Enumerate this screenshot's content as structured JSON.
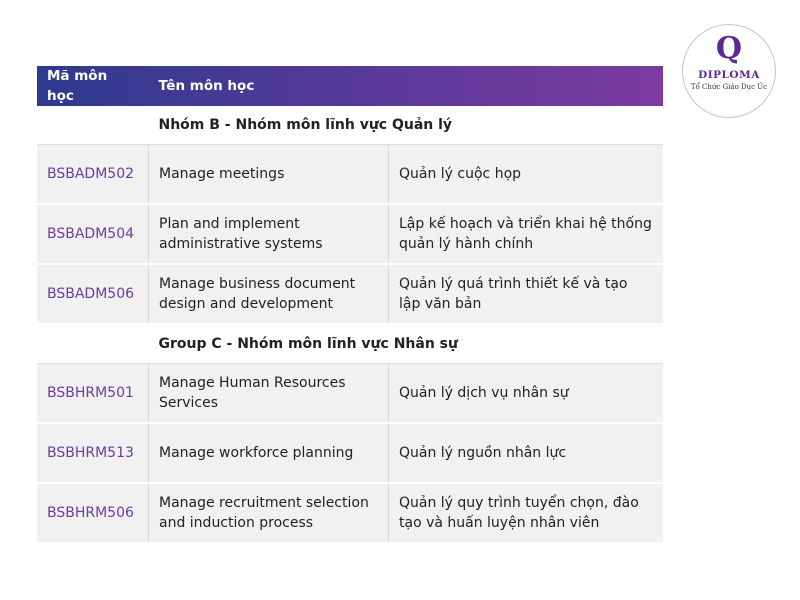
{
  "header": {
    "col1": "Mã môn học",
    "col2": "Tên môn học"
  },
  "groups": [
    {
      "title": "Nhóm B - Nhóm môn lĩnh vực Quản lý",
      "rows": [
        {
          "code": "BSBADM502",
          "en": "Manage meetings",
          "vi": "Quản lý cuộc họp"
        },
        {
          "code": "BSBADM504",
          "en": "Plan and implement administrative systems",
          "vi": "Lập kế hoạch và triển khai hệ thống quản lý hành chính"
        },
        {
          "code": "BSBADM506",
          "en": "Manage business document design and development",
          "vi": "Quản lý quá trình thiết kế và tạo lập văn bản"
        }
      ]
    },
    {
      "title": "Group C - Nhóm môn lĩnh vực Nhân sự",
      "rows": [
        {
          "code": "BSBHRM501",
          "en": "Manage Human Resources Services",
          "vi": "Quản lý dịch vụ nhân sự"
        },
        {
          "code": "BSBHRM513",
          "en": "Manage workforce planning",
          "vi": "Quản lý nguồn nhân lực"
        },
        {
          "code": "BSBHRM506",
          "en": "Manage recruitment selection and induction process",
          "vi": "Quản lý quy trình tuyển chọn, đào tạo và huấn luyện nhân viên"
        }
      ]
    }
  ],
  "logo": {
    "mark": "Q",
    "name": "DIPLOMA",
    "subtitle": "Tổ Chức Giáo Dục Úc"
  },
  "colors": {
    "header_start": "#2d3a8e",
    "header_end": "#7c3aa0",
    "code": "#6a3d9e",
    "row_bg": "#f1f1f1"
  }
}
